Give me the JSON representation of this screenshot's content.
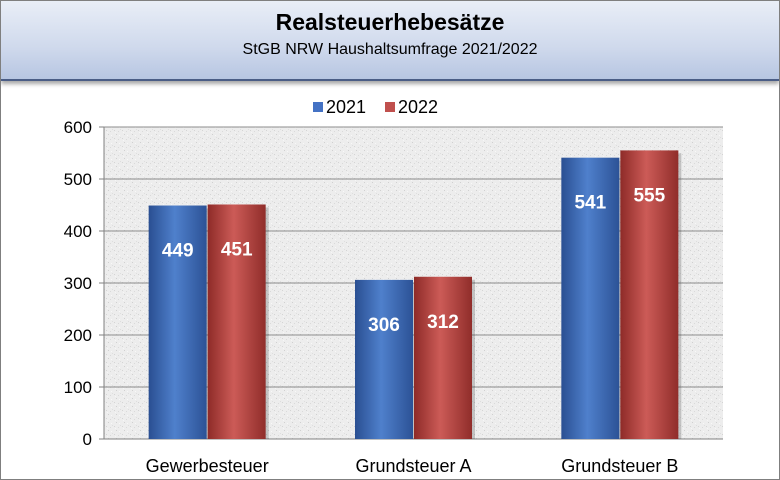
{
  "header": {
    "title": "Realsteuerhebesätze",
    "subtitle": "StGB NRW Haushaltsumfrage 2021/2022"
  },
  "chart_data": {
    "type": "bar",
    "title": "Realsteuerhebesätze",
    "subtitle": "StGB NRW Haushaltsumfrage 2021/2022",
    "categories": [
      "Gewerbesteuer",
      "Grundsteuer A",
      "Grundsteuer B"
    ],
    "series": [
      {
        "name": "2021",
        "values": [
          449,
          306,
          541
        ],
        "color": "#4472c4"
      },
      {
        "name": "2022",
        "values": [
          451,
          312,
          555
        ],
        "color": "#c0504d"
      }
    ],
    "xlabel": "",
    "ylabel": "",
    "ylim": [
      0,
      600
    ],
    "yticks": [
      0,
      100,
      200,
      300,
      400,
      500,
      600
    ],
    "grid": true,
    "legend": "top-center",
    "data_labels": true
  }
}
